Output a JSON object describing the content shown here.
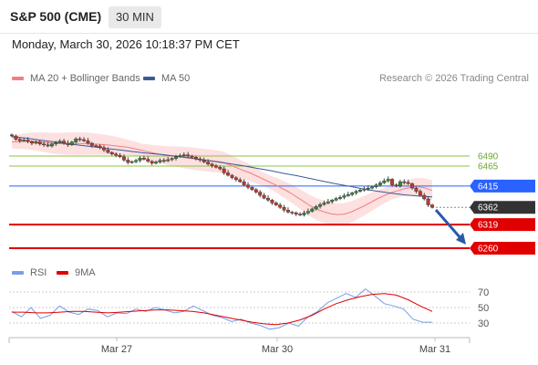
{
  "header": {
    "symbol": "S&P 500 (CME)",
    "interval": "30 MIN",
    "datetime": "Monday, March 30, 2026 10:18:37 PM CET"
  },
  "legend": {
    "ma20_label": "MA 20 + Bollinger Bands",
    "ma50_label": "MA 50",
    "credit": "Research © 2026 Trading Central",
    "rsi_label": "RSI",
    "rsi_ma_label": "9MA"
  },
  "colors": {
    "ma20": "#f08080",
    "bollinger_fill": "#fde0e0",
    "ma50": "#3a5a9a",
    "bull_candle": "#2e8b2e",
    "bear_candle": "#c0392b",
    "resistance": "#8bc34a",
    "pivot": "#2962ff",
    "support": "#e00000",
    "current_price": "#333333",
    "forecast_arrow": "#2a5aa8",
    "rsi": "#7a9ee6",
    "rsi_ma": "#e00000"
  },
  "chart_data": {
    "type": "candlestick",
    "price_range": [
      6240,
      6550
    ],
    "levels": [
      {
        "label": "6490",
        "value": 6490,
        "kind": "resistance"
      },
      {
        "label": "6465",
        "value": 6465,
        "kind": "resistance"
      },
      {
        "label": "6415",
        "value": 6415,
        "kind": "pivot"
      },
      {
        "label": "6362",
        "value": 6362,
        "kind": "current"
      },
      {
        "label": "6319",
        "value": 6319,
        "kind": "support"
      },
      {
        "label": "6260",
        "value": 6260,
        "kind": "support"
      }
    ],
    "x_ticks": [
      "Mar 27",
      "Mar 30",
      "Mar 31"
    ],
    "close_series": [
      6540,
      6532,
      6528,
      6530,
      6526,
      6522,
      6525,
      6520,
      6518,
      6515,
      6520,
      6524,
      6527,
      6522,
      6518,
      6525,
      6533,
      6531,
      6528,
      6522,
      6516,
      6515,
      6511,
      6505,
      6499,
      6495,
      6492,
      6488,
      6480,
      6474,
      6476,
      6479,
      6485,
      6482,
      6477,
      6472,
      6475,
      6479,
      6478,
      6481,
      6484,
      6489,
      6491,
      6493,
      6490,
      6487,
      6483,
      6480,
      6475,
      6470,
      6466,
      6462,
      6458,
      6448,
      6442,
      6436,
      6431,
      6426,
      6418,
      6412,
      6406,
      6400,
      6392,
      6385,
      6380,
      6373,
      6368,
      6362,
      6355,
      6350,
      6348,
      6345,
      6343,
      6348,
      6352,
      6358,
      6364,
      6369,
      6373,
      6376,
      6380,
      6384,
      6387,
      6391,
      6394,
      6398,
      6402,
      6405,
      6408,
      6410,
      6413,
      6418,
      6423,
      6428,
      6432,
      6418,
      6415,
      6426,
      6424,
      6421,
      6410,
      6402,
      6392,
      6383,
      6368,
      6362
    ],
    "ma20_series": [
      6525,
      6526,
      6527,
      6527,
      6526,
      6524,
      6522,
      6521,
      6521,
      6521,
      6521,
      6521,
      6520,
      6519,
      6518,
      6516,
      6514,
      6512,
      6509,
      6505,
      6501,
      6497,
      6494,
      6491,
      6489,
      6487,
      6485,
      6483,
      6481,
      6479,
      6477,
      6475,
      6469,
      6462,
      6455,
      6449,
      6441,
      6433,
      6425,
      6417,
      6408,
      6399,
      6388,
      6377,
      6366,
      6357,
      6351,
      6346,
      6344,
      6345,
      6350,
      6358,
      6366,
      6375,
      6384,
      6392,
      6399,
      6404,
      6409,
      6412,
      6413,
      6410,
      6404
    ],
    "ma50_series": [
      6538,
      6535,
      6530,
      6526,
      6521,
      6517,
      6513,
      6509,
      6505,
      6501,
      6497,
      6494,
      6490,
      6486,
      6481,
      6476,
      6471,
      6466,
      6460,
      6454,
      6447,
      6441,
      6434,
      6427,
      6420,
      6414,
      6407,
      6402,
      6397,
      6393,
      6390,
      6388
    ],
    "rsi": {
      "levels": [
        70,
        50,
        30
      ],
      "values": [
        45,
        38,
        50,
        36,
        40,
        52,
        44,
        41,
        48,
        46,
        38,
        43,
        42,
        48,
        45,
        50,
        47,
        43,
        45,
        52,
        46,
        40,
        37,
        32,
        35,
        30,
        27,
        22,
        24,
        30,
        26,
        38,
        45,
        56,
        62,
        68,
        63,
        74,
        65,
        55,
        52,
        48,
        35,
        31,
        31
      ],
      "ma_values": [
        44,
        44,
        43,
        43,
        44,
        45,
        45,
        44,
        43,
        44,
        45,
        46,
        47,
        47,
        46,
        45,
        43,
        40,
        37,
        34,
        31,
        29,
        28,
        30,
        34,
        40,
        48,
        55,
        60,
        64,
        67,
        68,
        66,
        60,
        52,
        45
      ]
    }
  }
}
